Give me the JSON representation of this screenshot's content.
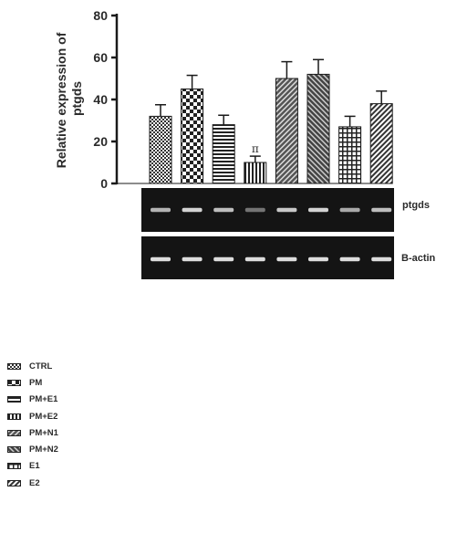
{
  "chart_data": {
    "type": "bar",
    "title": "",
    "xlabel": "",
    "ylabel": "Relative expression of ptgds",
    "ylim": [
      0,
      80
    ],
    "yticks": [
      "0",
      "20",
      "40",
      "60",
      "80"
    ],
    "categories": [
      "CTRL",
      "PM",
      "PM+E1",
      "PM+E2",
      "PM+N1",
      "PM+N2",
      "E1",
      "E2"
    ],
    "values": [
      32,
      45,
      28,
      10,
      50,
      52,
      27,
      38
    ],
    "errors": [
      5.5,
      6.5,
      4.5,
      3,
      8,
      7,
      5,
      6
    ],
    "annotations": [
      {
        "category": "PM+E2",
        "text": "π"
      }
    ],
    "grid": false,
    "legend_placement": "bottom-left"
  },
  "legend": {
    "items": [
      {
        "label": "CTRL"
      },
      {
        "label": "PM"
      },
      {
        "label": "PM+E1"
      },
      {
        "label": "PM+E2"
      },
      {
        "label": "PM+N1"
      },
      {
        "label": "PM+N2"
      },
      {
        "label": "E1"
      },
      {
        "label": "E2"
      }
    ]
  },
  "gel": {
    "top_label": "ptgds",
    "bottom_label": "B-actin",
    "ptgds_intensity": [
      0.75,
      0.9,
      0.8,
      0.45,
      0.85,
      0.9,
      0.7,
      0.8
    ],
    "actin_intensity": [
      0.95,
      0.95,
      0.95,
      0.95,
      0.95,
      0.95,
      0.95,
      0.95
    ]
  },
  "colors": {
    "bar_stroke": "#1a1a1a",
    "gel_background": "#141414",
    "band": "#e8e8e8"
  }
}
